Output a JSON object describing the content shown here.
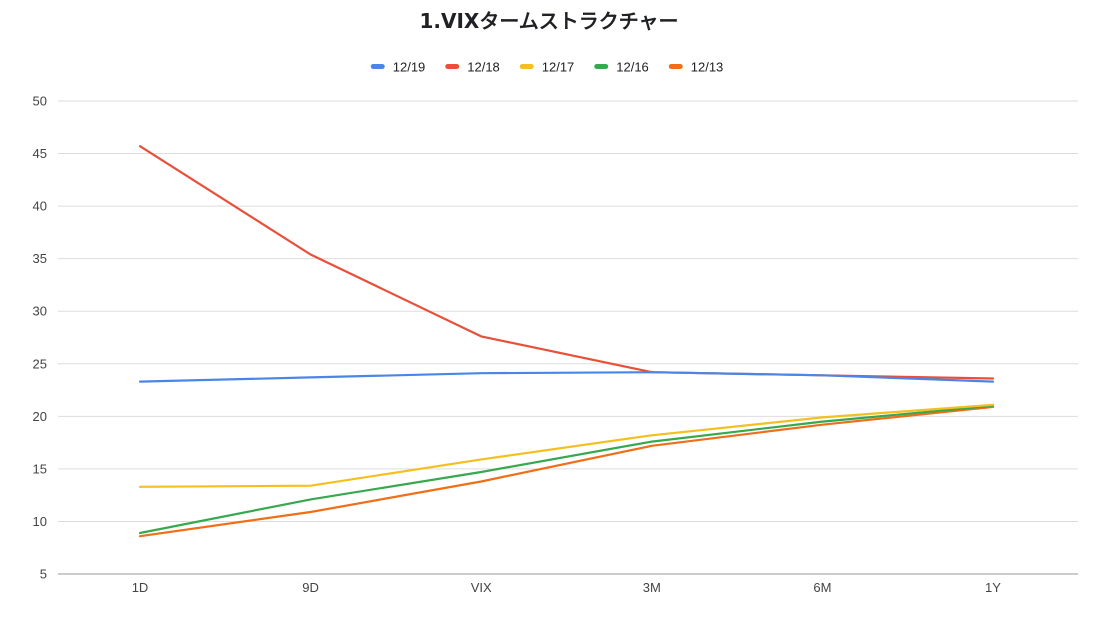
{
  "chart_data": {
    "type": "line",
    "title": "1.VIXタームストラクチャー",
    "xlabel": "",
    "ylabel": "",
    "categories": [
      "1D",
      "9D",
      "VIX",
      "3M",
      "6M",
      "1Y"
    ],
    "ylim": [
      5,
      50
    ],
    "yticks": [
      5,
      10,
      15,
      20,
      25,
      30,
      35,
      40,
      45,
      50
    ],
    "grid": true,
    "legend_position": "top",
    "series": [
      {
        "name": "12/19",
        "color": "#4a86e8",
        "values": [
          23.3,
          23.7,
          24.1,
          24.2,
          23.9,
          23.3
        ]
      },
      {
        "name": "12/18",
        "color": "#e8503a",
        "values": [
          45.7,
          35.4,
          27.6,
          24.2,
          23.9,
          23.6
        ]
      },
      {
        "name": "12/17",
        "color": "#f4bf1f",
        "values": [
          13.3,
          13.4,
          15.9,
          18.2,
          19.9,
          21.1
        ]
      },
      {
        "name": "12/16",
        "color": "#38a84e",
        "values": [
          8.9,
          12.1,
          14.7,
          17.6,
          19.5,
          21.0
        ]
      },
      {
        "name": "12/13",
        "color": "#f06e16",
        "values": [
          8.6,
          10.9,
          13.8,
          17.2,
          19.2,
          20.9
        ]
      }
    ]
  }
}
